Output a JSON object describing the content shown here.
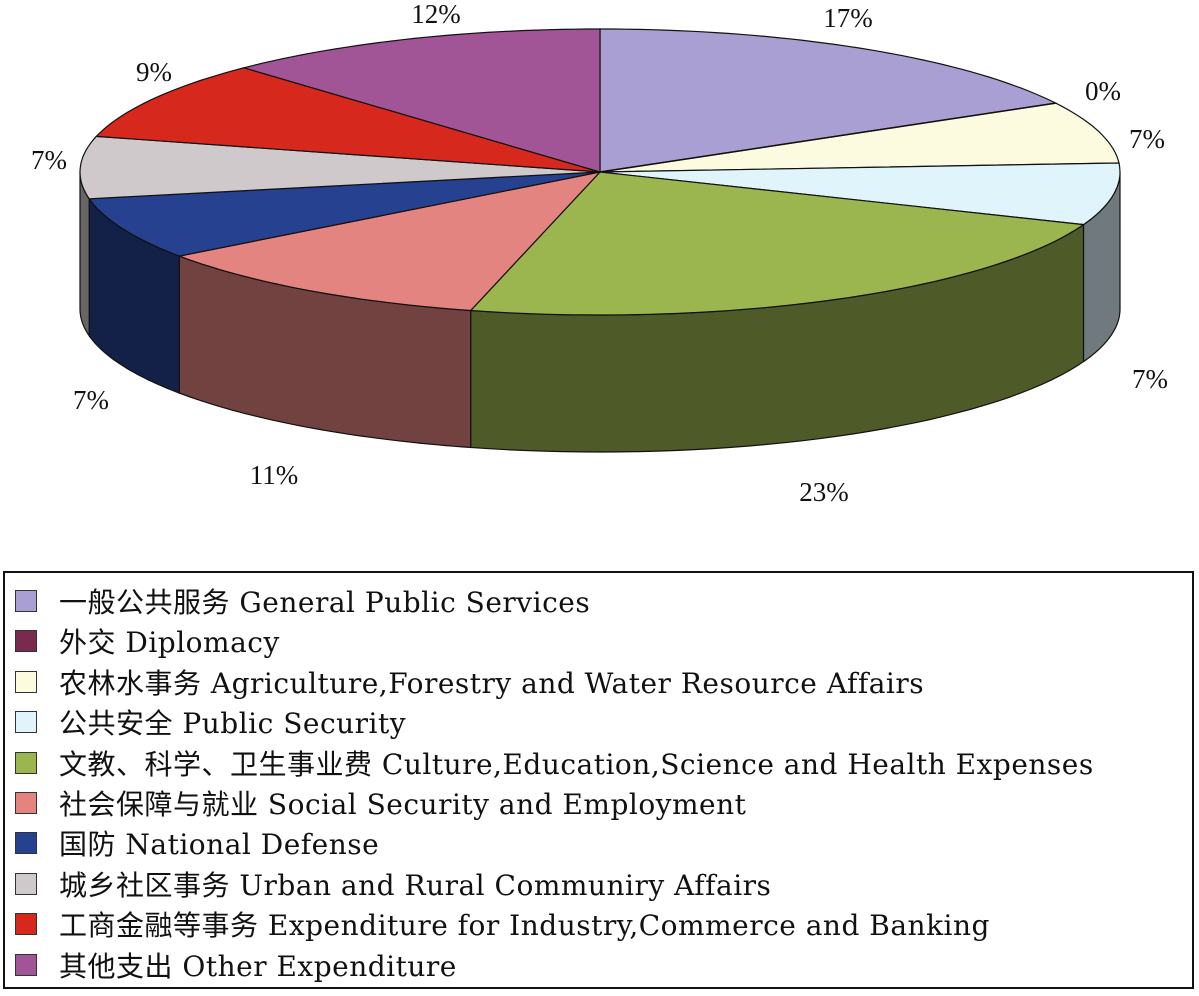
{
  "chart_data": {
    "type": "pie",
    "title": "",
    "categories": [
      "一般公共服务 General Public Services",
      "外交 Diplomacy",
      "农林水事务 Agriculture,Forestry and Water Resource Affairs",
      "公共安全 Public Security",
      "文教、科学、卫生事业费 Culture,Education,Science and Health Expenses",
      "社会保障与就业 Social Security and Employment",
      "国防 National Defense",
      "城乡社区事务 Urban and Rural Communiry Affairs",
      "工商金融等事务 Expenditure for Industry,Commerce and Banking",
      "其他支出 Other Expenditure"
    ],
    "values": [
      17,
      0,
      7,
      7,
      23,
      11,
      7,
      7,
      9,
      12
    ],
    "labels": [
      "17%",
      "0%",
      "7%",
      "7%",
      "23%",
      "11%",
      "7%",
      "7%",
      "9%",
      "12%"
    ],
    "colors": [
      "#a99fd2",
      "#7a2a4c",
      "#fdfbdf",
      "#dff4fb",
      "#9bb54f",
      "#e38480",
      "#26418f",
      "#cfc9cb",
      "#d7281e",
      "#a25596"
    ],
    "legend_position": "bottom",
    "style": "3d"
  },
  "legend": [
    {
      "label": "一般公共服务 General Public Services",
      "color": "#a99fd2"
    },
    {
      "label": "外交 Diplomacy",
      "color": "#7a2a4c"
    },
    {
      "label": "农林水事务 Agriculture,Forestry and Water Resource Affairs",
      "color": "#fdfbdf"
    },
    {
      "label": "公共安全 Public Security",
      "color": "#dff4fb"
    },
    {
      "label": "文教、科学、卫生事业费 Culture,Education,Science and Health Expenses",
      "color": "#9bb54f"
    },
    {
      "label": "社会保障与就业 Social Security and Employment",
      "color": "#e38480"
    },
    {
      "label": "国防 National Defense",
      "color": "#26418f"
    },
    {
      "label": "城乡社区事务 Urban and Rural Communiry Affairs",
      "color": "#cfc9cb"
    },
    {
      "label": "工商金融等事务 Expenditure for Industry,Commerce and Banking",
      "color": "#d7281e"
    },
    {
      "label": "其他支出 Other Expenditure",
      "color": "#a25596"
    }
  ]
}
